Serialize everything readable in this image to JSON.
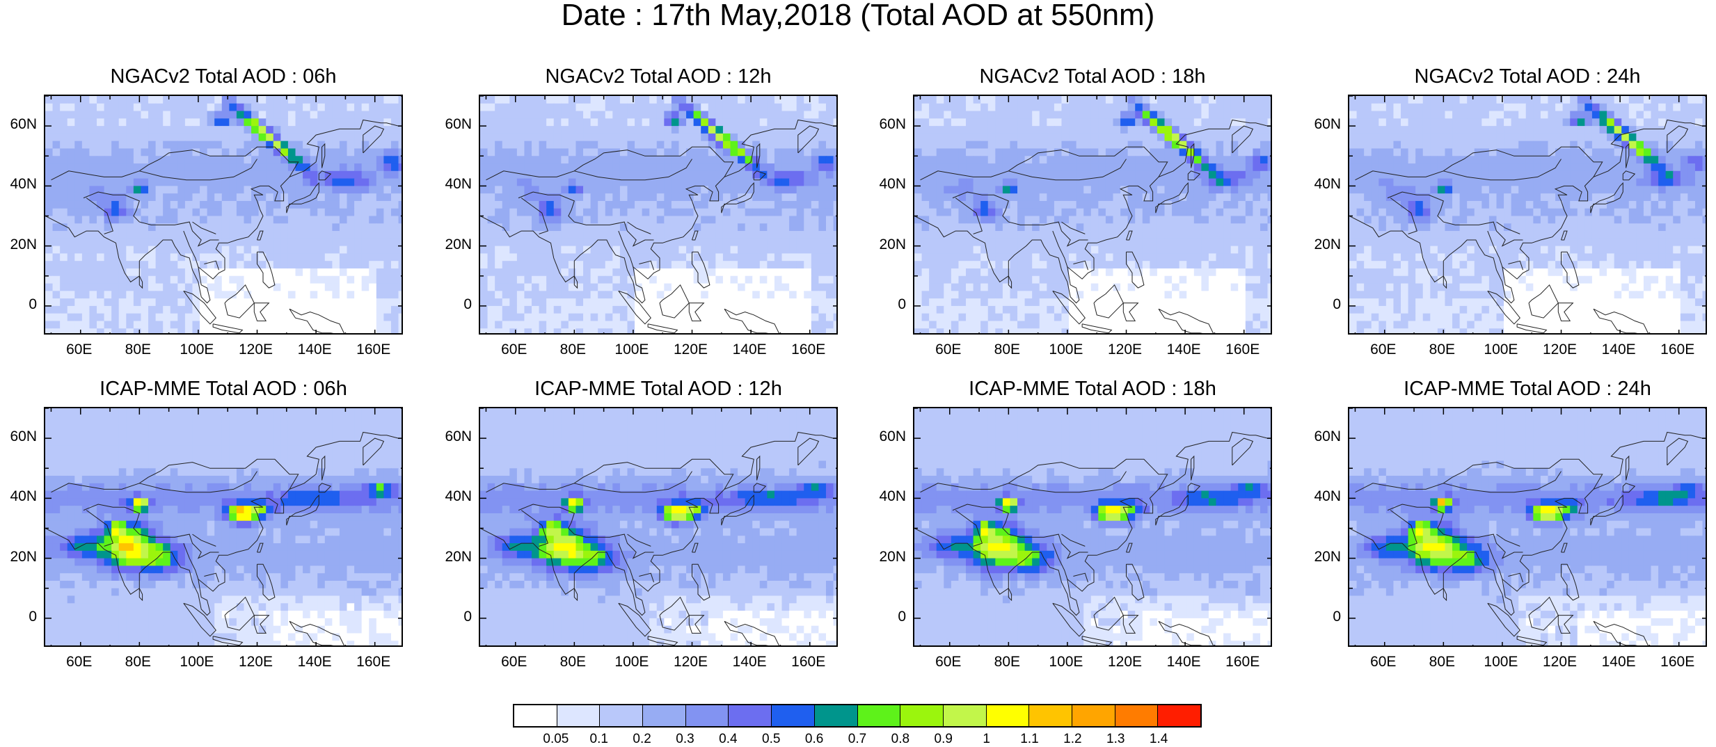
{
  "title": "Date : 17th May,2018 (Total AOD at 550nm)",
  "panels": [
    {
      "title": "NGACv2 Total AOD : 06h",
      "model": "ngac",
      "hour": "06h"
    },
    {
      "title": "NGACv2 Total AOD : 12h",
      "model": "ngac",
      "hour": "12h"
    },
    {
      "title": "NGACv2 Total AOD : 18h",
      "model": "ngac",
      "hour": "18h"
    },
    {
      "title": "NGACv2 Total AOD : 24h",
      "model": "ngac",
      "hour": "24h"
    },
    {
      "title": "ICAP-MME Total AOD : 06h",
      "model": "icap",
      "hour": "06h"
    },
    {
      "title": "ICAP-MME Total AOD : 12h",
      "model": "icap",
      "hour": "12h"
    },
    {
      "title": "ICAP-MME Total AOD : 18h",
      "model": "icap",
      "hour": "18h"
    },
    {
      "title": "ICAP-MME Total AOD : 24h",
      "model": "icap",
      "hour": "24h"
    }
  ],
  "axes": {
    "lon_range": [
      48,
      170
    ],
    "lat_range": [
      -10,
      70
    ],
    "x_ticks": [
      {
        "value": 60,
        "label": "60E"
      },
      {
        "value": 80,
        "label": "80E"
      },
      {
        "value": 100,
        "label": "100E"
      },
      {
        "value": 120,
        "label": "120E"
      },
      {
        "value": 140,
        "label": "140E"
      },
      {
        "value": 160,
        "label": "160E"
      }
    ],
    "y_ticks": [
      {
        "value": 60,
        "label": "60N"
      },
      {
        "value": 40,
        "label": "40N"
      },
      {
        "value": 20,
        "label": "20N"
      },
      {
        "value": 0,
        "label": "0"
      }
    ]
  },
  "colorbar": {
    "labels": [
      "0.05",
      "0.1",
      "0.2",
      "0.3",
      "0.4",
      "0.5",
      "0.6",
      "0.7",
      "0.8",
      "0.9",
      "1",
      "1.1",
      "1.2",
      "1.3",
      "1.4"
    ],
    "colors": [
      "#ffffff",
      "#dde6ff",
      "#b9c8fa",
      "#97acf3",
      "#8293f2",
      "#6c6ef0",
      "#1f5fef",
      "#00958c",
      "#5ef21a",
      "#9bf50d",
      "#c2f64a",
      "#ffff00",
      "#ffc400",
      "#ffa500",
      "#ff7c00",
      "#ff1e00"
    ]
  }
}
